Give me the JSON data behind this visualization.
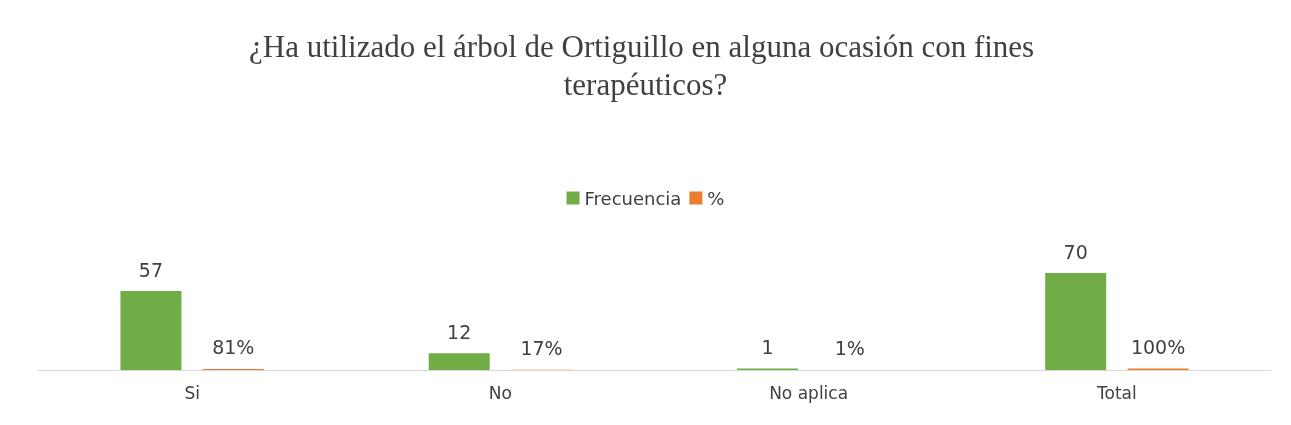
{
  "chart_data": {
    "type": "bar",
    "title": "¿Ha utilizado el árbol de Ortiguillo en alguna ocasión con fines terapéuticos?",
    "categories": [
      "Si",
      "No",
      "No aplica",
      "Total"
    ],
    "series": [
      {
        "name": "Frecuencia",
        "color": "#70ad47",
        "values": [
          57,
          12,
          1,
          70
        ],
        "value_labels": [
          "57",
          "12",
          "1",
          "70"
        ]
      },
      {
        "name": "%",
        "color": "#ed7d31",
        "values": [
          0.81,
          0.17,
          0.01,
          1
        ],
        "value_labels": [
          "81%",
          "17%",
          "1%",
          "100%"
        ]
      }
    ],
    "legend": "top",
    "grid": false
  }
}
